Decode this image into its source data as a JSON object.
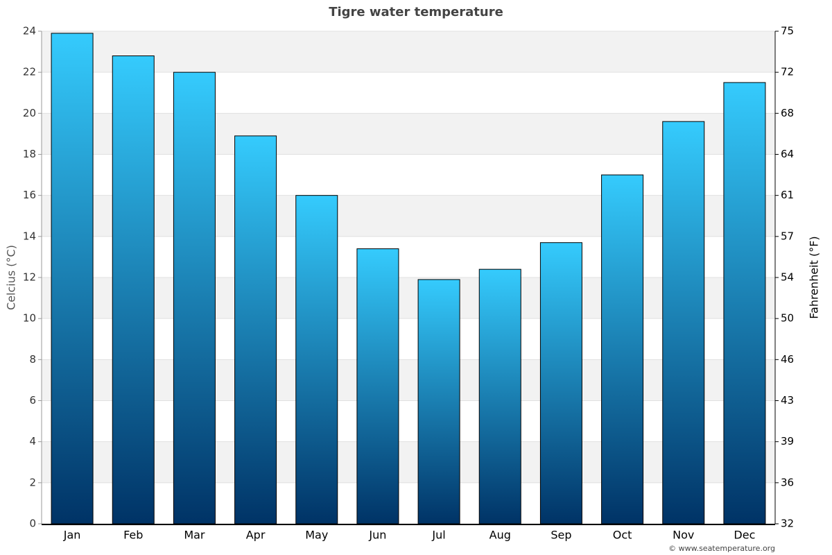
{
  "chart_data": {
    "type": "bar",
    "title": "Tigre water temperature",
    "categories": [
      "Jan",
      "Feb",
      "Mar",
      "Apr",
      "May",
      "Jun",
      "Jul",
      "Aug",
      "Sep",
      "Oct",
      "Nov",
      "Dec"
    ],
    "values": [
      23.9,
      22.8,
      22.0,
      18.9,
      16.0,
      13.4,
      11.9,
      12.4,
      13.7,
      17.0,
      19.6,
      21.5
    ],
    "colors": [
      "#35cbfd",
      "#003366"
    ],
    "ylabel": "Celcius (°C)",
    "y2label": "Fahrenheit (°F)",
    "ylim": [
      0,
      24
    ],
    "yticks": [
      0,
      2,
      4,
      6,
      8,
      10,
      12,
      14,
      16,
      18,
      20,
      22,
      24
    ],
    "y2lim": [
      32,
      75.2
    ],
    "y2ticks": [
      32,
      {
        "value": 35.6,
        "label": "36"
      },
      {
        "value": 39.2,
        "label": "39"
      },
      {
        "value": 42.8,
        "label": "43"
      },
      {
        "value": 46.4,
        "label": "46"
      },
      50,
      {
        "value": 53.6,
        "label": "54"
      },
      {
        "value": 57.2,
        "label": "57"
      },
      {
        "value": 60.8,
        "label": "61"
      },
      {
        "value": 64.4,
        "label": "64"
      },
      68,
      {
        "value": 71.6,
        "label": "72"
      },
      {
        "value": 75.2,
        "label": "75"
      }
    ],
    "grid": true,
    "credit": "© www.seatemperature.org"
  }
}
